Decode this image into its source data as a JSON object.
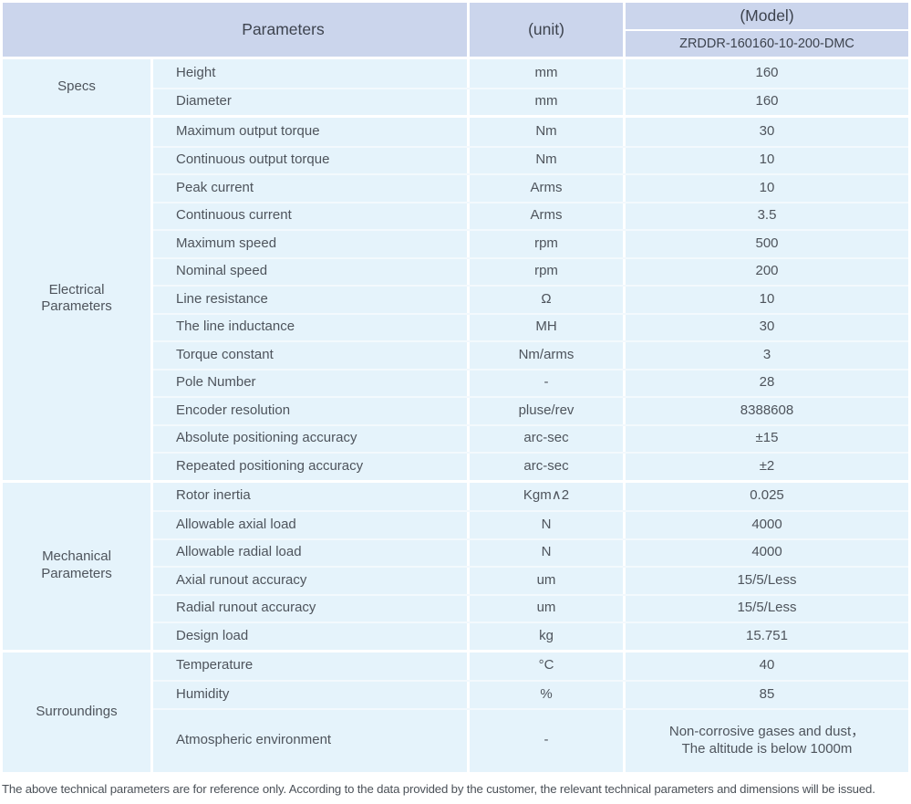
{
  "header": {
    "parameters_label": "Parameters",
    "unit_label": "(unit)",
    "model_label": "(Model)",
    "model_value": "ZRDDR-160160-10-200-DMC"
  },
  "sections": [
    {
      "name": "Specs",
      "rows": [
        {
          "param": "Height",
          "unit": "mm",
          "value": "160"
        },
        {
          "param": "Diameter",
          "unit": "mm",
          "value": "160"
        }
      ]
    },
    {
      "name": "Electrical\nParameters",
      "rows": [
        {
          "param": "Maximum output torque",
          "unit": "Nm",
          "value": "30"
        },
        {
          "param": "Continuous output torque",
          "unit": "Nm",
          "value": "10"
        },
        {
          "param": "Peak current",
          "unit": "Arms",
          "value": "10"
        },
        {
          "param": "Continuous current",
          "unit": "Arms",
          "value": "3.5"
        },
        {
          "param": "Maximum speed",
          "unit": "rpm",
          "value": "500"
        },
        {
          "param": "Nominal speed",
          "unit": "rpm",
          "value": "200"
        },
        {
          "param": "Line resistance",
          "unit": "Ω",
          "value": "10"
        },
        {
          "param": "The line inductance",
          "unit": "MH",
          "value": "30"
        },
        {
          "param": "Torque constant",
          "unit": "Nm/arms",
          "value": "3"
        },
        {
          "param": "Pole Number",
          "unit": "-",
          "value": "28"
        },
        {
          "param": "Encoder resolution",
          "unit": "pluse/rev",
          "value": "8388608"
        },
        {
          "param": "Absolute positioning accuracy",
          "unit": "arc-sec",
          "value": "±15"
        },
        {
          "param": "Repeated positioning accuracy",
          "unit": "arc-sec",
          "value": "±2"
        }
      ]
    },
    {
      "name": "Mechanical\nParameters",
      "rows": [
        {
          "param": "Rotor inertia",
          "unit": "Kgm∧2",
          "value": "0.025"
        },
        {
          "param": "Allowable axial load",
          "unit": "N",
          "value": "4000"
        },
        {
          "param": "Allowable radial load",
          "unit": "N",
          "value": "4000"
        },
        {
          "param": "Axial runout accuracy",
          "unit": "um",
          "value": "15/5/Less"
        },
        {
          "param": "Radial runout accuracy",
          "unit": "um",
          "value": "15/5/Less"
        },
        {
          "param": "Design load",
          "unit": "kg",
          "value": "15.751"
        }
      ]
    },
    {
      "name": "Surroundings",
      "rows": [
        {
          "param": "Temperature",
          "unit": "°C",
          "value": "40"
        },
        {
          "param": "Humidity",
          "unit": "%",
          "value": "85"
        },
        {
          "param": "Atmospheric environment",
          "unit": "-",
          "value": "Non-corrosive gases and dust，\nThe altitude is below 1000m",
          "tall": true
        }
      ]
    }
  ],
  "footer": {
    "note": "The above technical parameters are for reference only. According to the data provided by the customer, the relevant technical parameters and dimensions will be issued."
  },
  "colors": {
    "header_bg": "#cbd5ec",
    "cell_bg": "#e5f3fb",
    "row_divider": "#f3f9fd",
    "header_text": "#3d434e",
    "body_text": "#4e545c",
    "note_text": "#4b5158"
  }
}
